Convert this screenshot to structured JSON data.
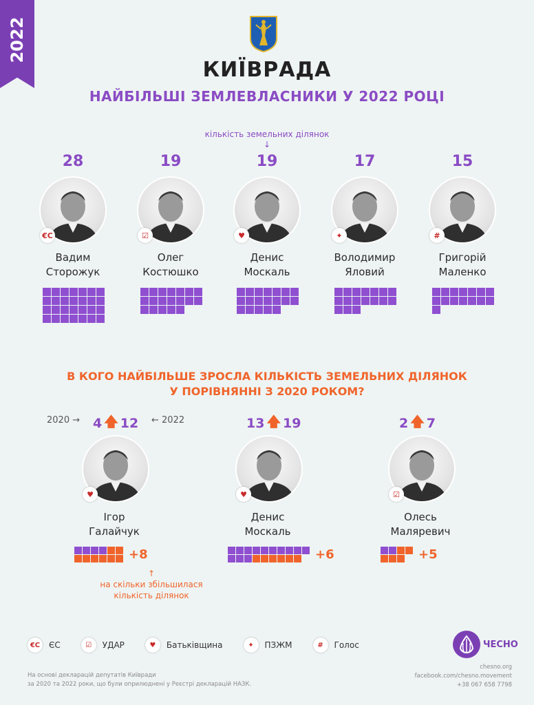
{
  "year": "2022",
  "title": "КИЇВРАДА",
  "subtitle": "НАЙБІЛЬШІ ЗЕМЛЕВЛАСНИКИ У 2022 РОЦІ",
  "count_note": "кількість земельних ділянок",
  "top": [
    {
      "count": "28",
      "first": "Вадим",
      "last": "Сторожук",
      "party": "ЄС",
      "badge": "€С",
      "plots": 28
    },
    {
      "count": "19",
      "first": "Олег",
      "last": "Костюшко",
      "party": "УДАР",
      "badge": "☑",
      "plots": 19
    },
    {
      "count": "19",
      "first": "Денис",
      "last": "Москаль",
      "party": "Батьківщина",
      "badge": "♥",
      "plots": 19
    },
    {
      "count": "17",
      "first": "Володимир",
      "last": "Яловий",
      "party": "ПЗЖМ",
      "badge": "✦",
      "plots": 17
    },
    {
      "count": "15",
      "first": "Григорій",
      "last": "Маленко",
      "party": "Голос",
      "badge": "#",
      "plots": 15
    }
  ],
  "question": [
    "В КОГО НАЙБІЛЬШЕ ЗРОСЛА КІЛЬКІСТЬ ЗЕМЕЛЬНИХ ДІЛЯНОК",
    "У ПОРІВНЯННІ З 2020 РОКОМ?"
  ],
  "year_2020": "2020 →",
  "year_2022": "← 2022",
  "growth": [
    {
      "from": "4",
      "to": "12",
      "first": "Ігор",
      "last": "Галайчук",
      "party": "Батьківщина",
      "badge": "♥",
      "old": 4,
      "new": 8,
      "plus": "+8"
    },
    {
      "from": "13",
      "to": "19",
      "first": "Денис",
      "last": "Москаль",
      "party": "Батьківщина",
      "badge": "♥",
      "old": 13,
      "new": 6,
      "plus": "+6"
    },
    {
      "from": "2",
      "to": "7",
      "first": "Олесь",
      "last": "Маляревич",
      "party": "УДАР",
      "badge": "☑",
      "old": 2,
      "new": 5,
      "plus": "+5"
    }
  ],
  "increase_note": [
    "на скільки збільшилася",
    "кількість ділянок"
  ],
  "legend": [
    {
      "badge": "€С",
      "label": "ЄС"
    },
    {
      "badge": "☑",
      "label": "УДАР"
    },
    {
      "badge": "♥",
      "label": "Батьківщина"
    },
    {
      "badge": "✦",
      "label": "ПЗЖМ"
    },
    {
      "badge": "#",
      "label": "Голос"
    }
  ],
  "brand": "ЧЕСНО",
  "source": [
    "На основі декларацій депутатів Київради",
    "за 2020 та 2022 роки, що були оприлюднені у Реєстрі декларацій НАЗК."
  ],
  "contacts": [
    "chesno.org",
    "facebook.com/chesno.movement",
    "+38 067 658 7798"
  ],
  "colors": {
    "purple": "#8f4fd0",
    "orange": "#f0642b",
    "background": "#eef4f3"
  }
}
